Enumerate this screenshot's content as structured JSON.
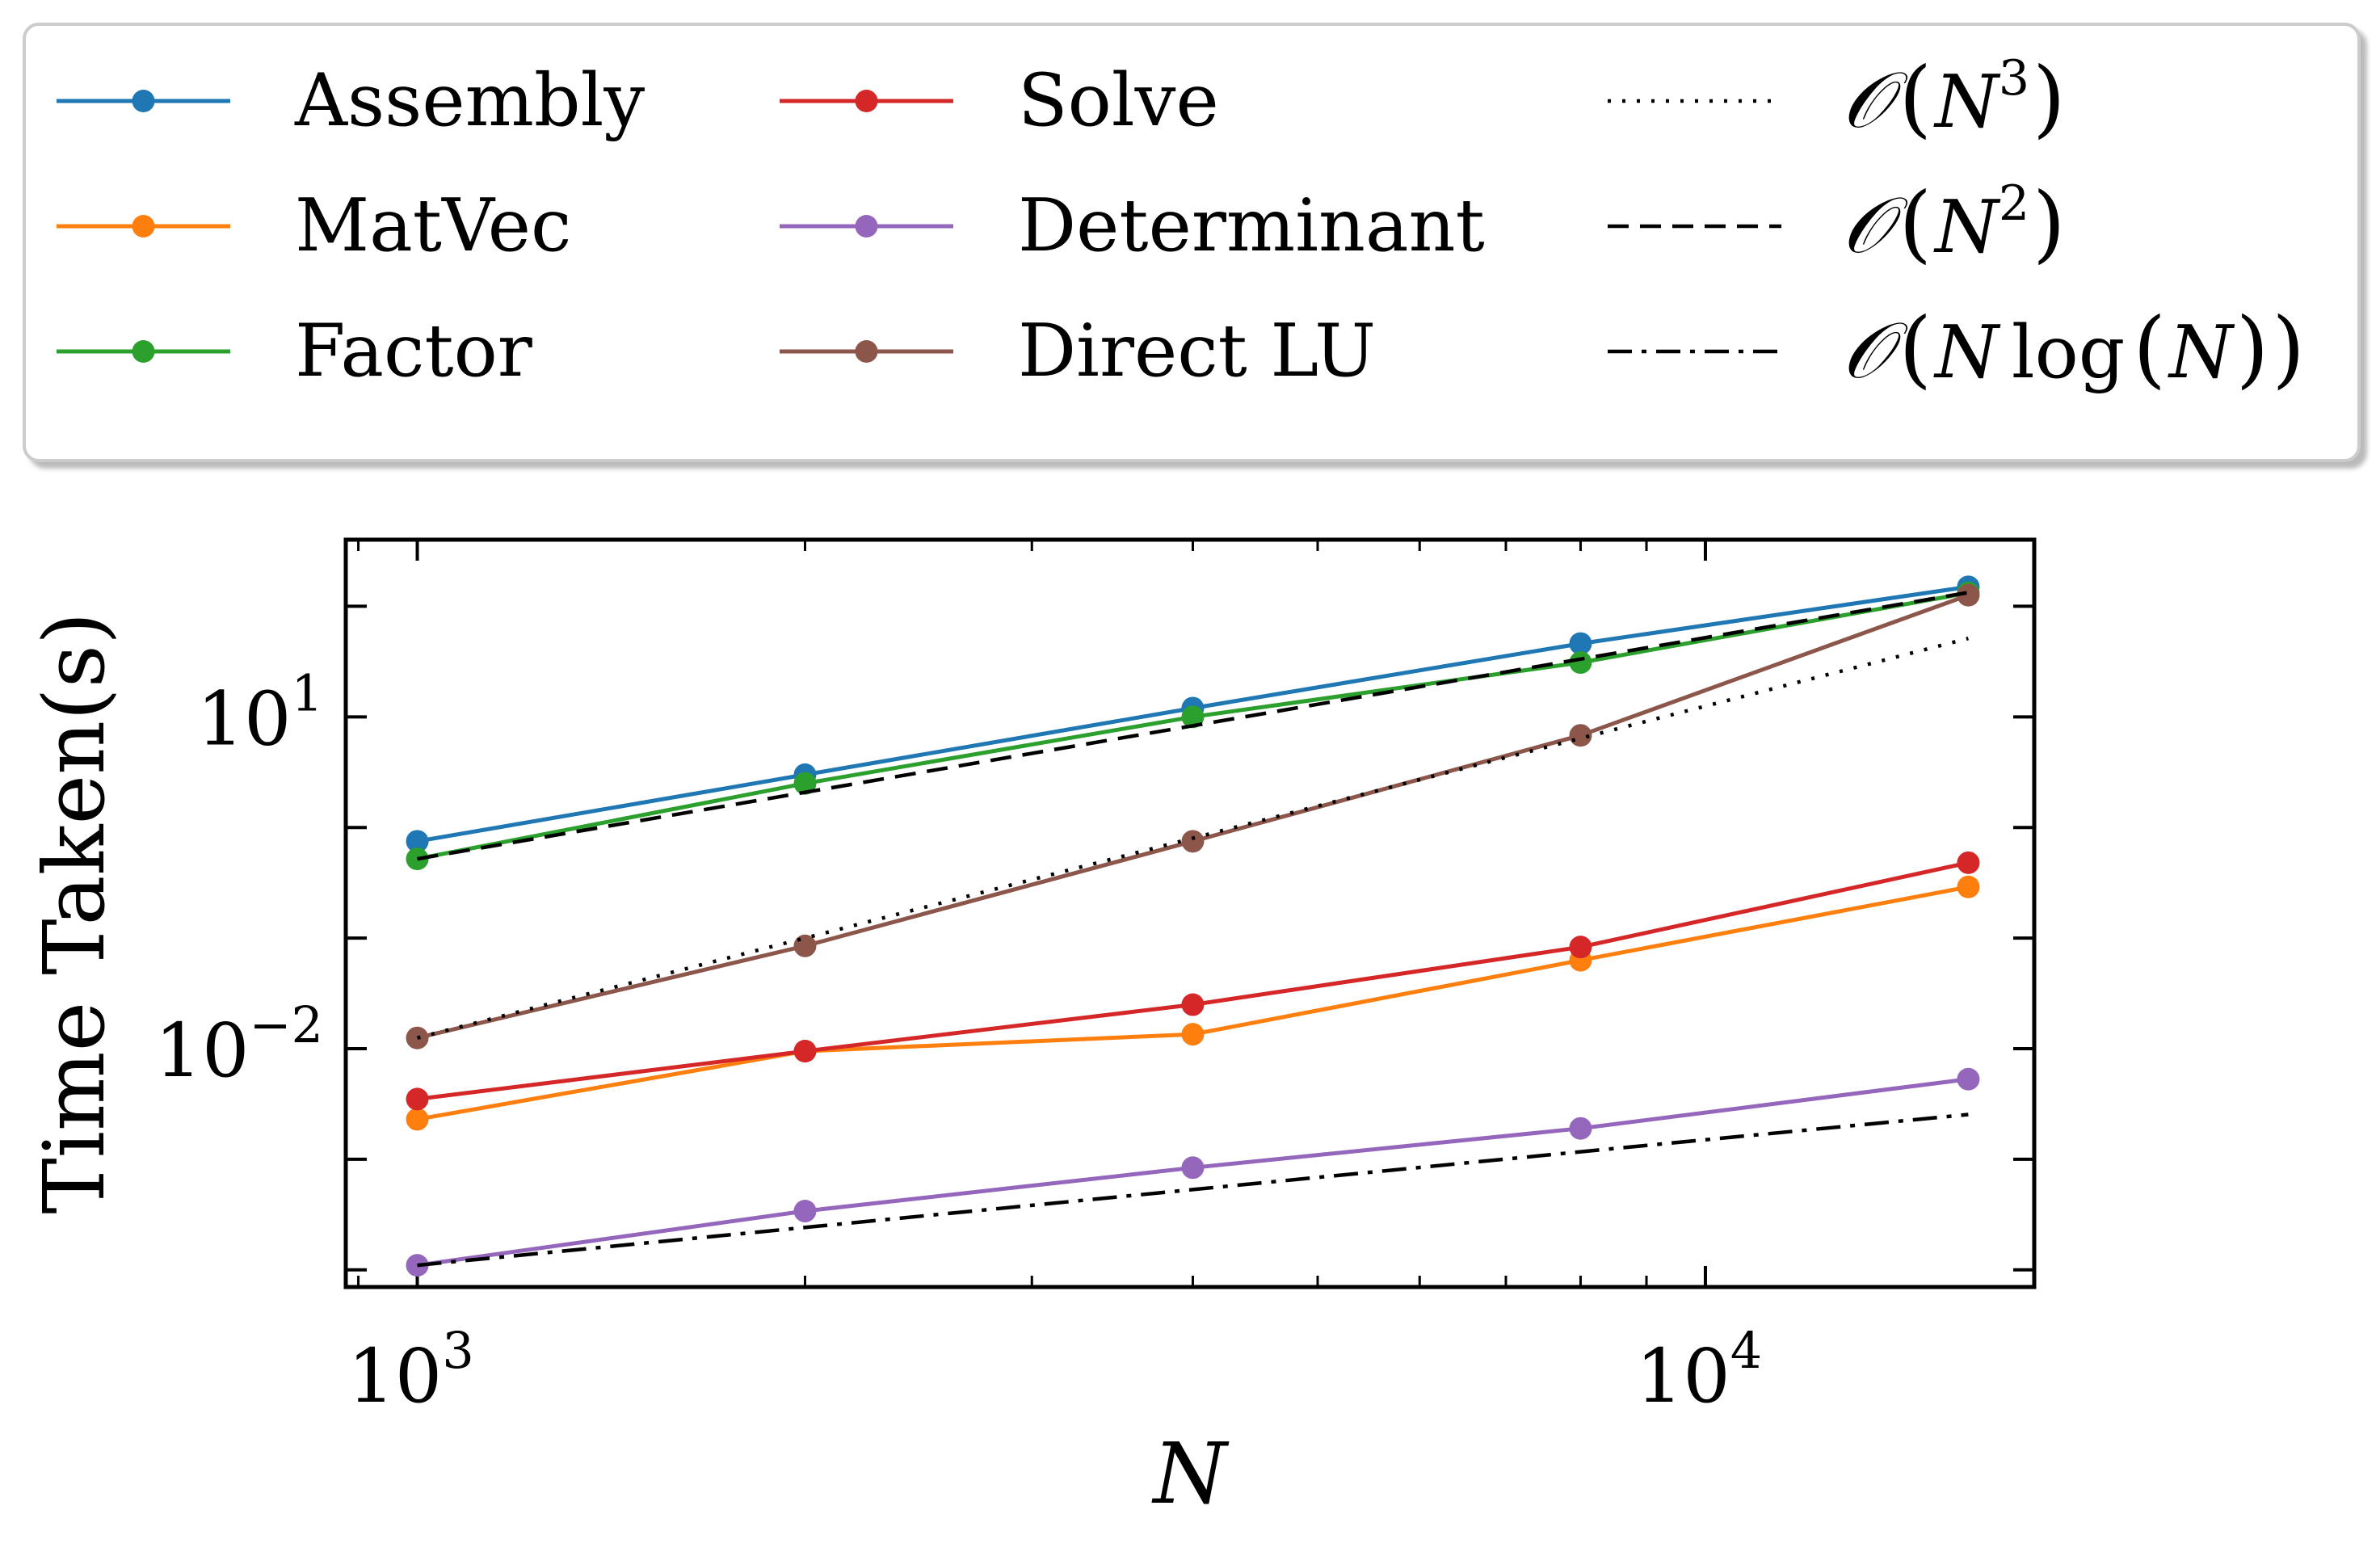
{
  "chart_data": {
    "type": "line",
    "xlabel": "N",
    "ylabel": "Time Taken(s)",
    "x_scale": "log",
    "y_scale": "log",
    "xlim": [
      880,
      18000
    ],
    "ylim": [
      7e-05,
      400
    ],
    "x_ticks": [
      {
        "value": 1000,
        "base": "10",
        "exp": "3"
      },
      {
        "value": 10000,
        "base": "10",
        "exp": "4"
      }
    ],
    "y_ticks": [
      {
        "value": 10,
        "base": "10",
        "exp": "1"
      },
      {
        "value": 0.01,
        "base": "10",
        "exp": "−2"
      }
    ],
    "x": [
      1000,
      2000,
      4000,
      8000,
      16000
    ],
    "series": [
      {
        "name": "Assembly",
        "color": "#1f77b4",
        "style": "solid-marker",
        "values": [
          0.75,
          3.0,
          12.0,
          46.0,
          150.0
        ]
      },
      {
        "name": "MatVec",
        "color": "#ff7f0e",
        "style": "solid-marker",
        "values": [
          0.0023,
          0.0095,
          0.0135,
          0.063,
          0.29
        ]
      },
      {
        "name": "Factor",
        "color": "#2ca02c",
        "style": "solid-marker",
        "values": [
          0.52,
          2.5,
          10.0,
          31.0,
          132.0
        ]
      },
      {
        "name": "Solve",
        "color": "#d62728",
        "style": "solid-marker",
        "values": [
          0.0035,
          0.0095,
          0.025,
          0.083,
          0.48
        ]
      },
      {
        "name": "Determinant",
        "color": "#9467bd",
        "style": "solid-marker",
        "values": [
          0.00011,
          0.00034,
          0.00084,
          0.0019,
          0.0053
        ]
      },
      {
        "name": "Direct LU",
        "color": "#8c564b",
        "style": "solid-marker",
        "values": [
          0.0125,
          0.085,
          0.75,
          6.8,
          126.0
        ]
      },
      {
        "name": "𝒪(N³)",
        "color": "#000000",
        "style": "dotted",
        "values": [
          0.0125,
          0.1,
          0.8,
          6.4,
          51.2
        ]
      },
      {
        "name": "𝒪(N²)",
        "color": "#000000",
        "style": "dashed",
        "values": [
          0.52,
          2.08,
          8.32,
          33.3,
          133.1
        ]
      },
      {
        "name": "𝒪(N log(N))",
        "color": "#000000",
        "style": "dashdot",
        "values": [
          0.00011,
          0.000242,
          0.000532,
          0.00117,
          0.00254
        ]
      }
    ],
    "legend": {
      "placement": "top, outside plot, 3 columns",
      "entries": [
        {
          "label": "Assembly",
          "series": 0
        },
        {
          "label": "MatVec",
          "series": 1
        },
        {
          "label": "Factor",
          "series": 2
        },
        {
          "label": "Solve",
          "series": 3
        },
        {
          "label": "Determinant",
          "series": 4
        },
        {
          "label": "Direct LU",
          "series": 5
        },
        {
          "label_math": {
            "head": "𝒪",
            "open": "(",
            "var": "N",
            "sup": "3",
            "close": ")"
          },
          "series": 6
        },
        {
          "label_math": {
            "head": "𝒪",
            "open": "(",
            "var": "N",
            "sup": "2",
            "close": ")"
          },
          "series": 7
        },
        {
          "label_math": {
            "head": "𝒪",
            "open": "(",
            "var": "N",
            "mid": "log",
            "inner_open": "(",
            "inner_var": "N",
            "inner_close": ")",
            "close": ")"
          },
          "series": 8
        }
      ]
    },
    "grid": false
  }
}
